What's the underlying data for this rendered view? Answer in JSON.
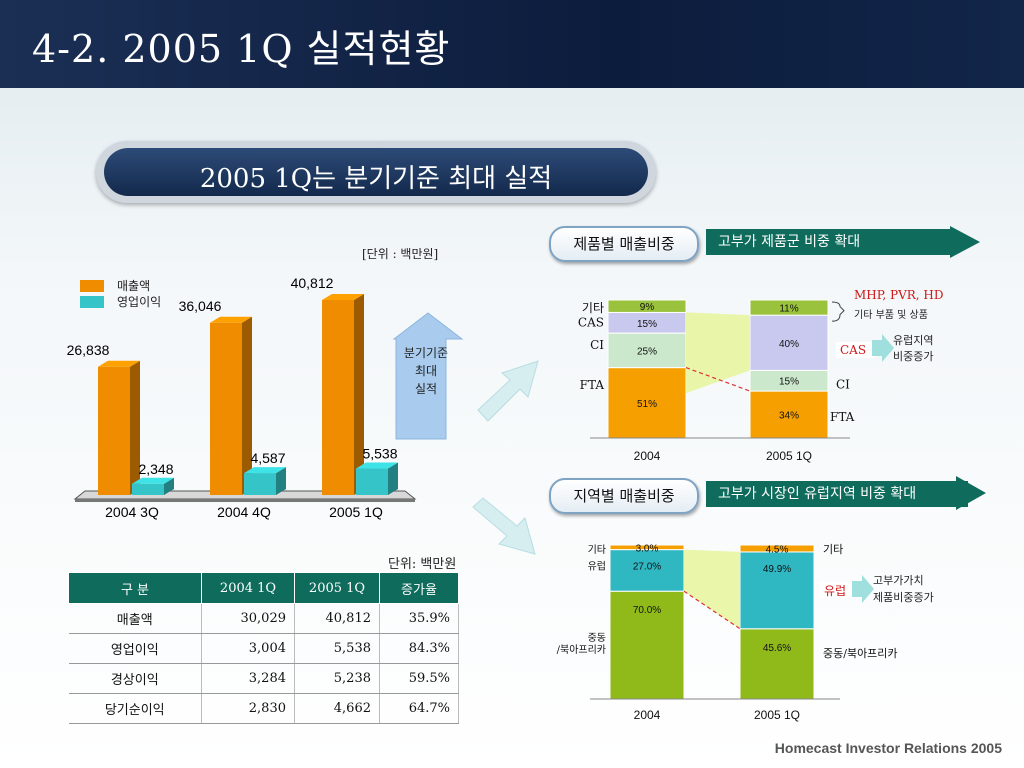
{
  "title": "4-2. 2005 1Q 실적현황",
  "headline": "2005 1Q는 분기기준 최대 실적",
  "unit_top": "[단위 : 백만원]",
  "unit_table": "단위: 백만원",
  "up_arrow_text": [
    "분기기준",
    "최대",
    "실적"
  ],
  "footer": "Homecast Investor Relations 2005",
  "colors": {
    "sales": "#f08c00",
    "op": "#35c5c8",
    "banner": "#0f6c5c",
    "fta": "#f5a000",
    "ci": "#cce8cc",
    "cas": "#c9c9ef",
    "etc": "#9ac23c",
    "europe": "#2fb7c2",
    "mideast": "#8fba1a"
  },
  "sections": {
    "product": {
      "tag": "제품별 매출비중",
      "banner": "고부가 제품군 비중 확대"
    },
    "region": {
      "tag": "지역별 매출비중",
      "banner": "고부가 시장인 유럽지역 비중 확대"
    }
  },
  "chart_data": [
    {
      "type": "bar",
      "categories": [
        "2004 3Q",
        "2004 4Q",
        "2005 1Q"
      ],
      "series": [
        {
          "name": "매출액",
          "values": [
            26838,
            36046,
            40812
          ],
          "labels": [
            "26,838",
            "36,046",
            "40,812"
          ]
        },
        {
          "name": "영업이익",
          "values": [
            2348,
            4587,
            5538
          ],
          "labels": [
            "2,348",
            "4,587",
            "5,538"
          ]
        }
      ]
    },
    {
      "type": "bar",
      "stacked": true,
      "categories": [
        "2004",
        "2005 1Q"
      ],
      "series": [
        {
          "name": "FTA",
          "values": [
            51,
            34
          ],
          "labels": [
            "51%",
            "34%"
          ]
        },
        {
          "name": "CI",
          "values": [
            25,
            15
          ],
          "labels": [
            "25%",
            "15%"
          ]
        },
        {
          "name": "CAS",
          "values": [
            15,
            40
          ],
          "labels": [
            "15%",
            "40%"
          ]
        },
        {
          "name": "기타",
          "values": [
            9,
            11
          ],
          "labels": [
            "9%",
            "11%"
          ]
        }
      ],
      "annotations": [
        "MHP, PVR, HD",
        "기타 부품 및 상품",
        "유럽지역",
        "비중증가",
        "CAS"
      ]
    },
    {
      "type": "bar",
      "stacked": true,
      "categories": [
        "2004",
        "2005 1Q"
      ],
      "series": [
        {
          "name": "중동/북아프리카",
          "values": [
            70.0,
            45.6
          ],
          "labels": [
            "70.0%",
            "45.6%"
          ]
        },
        {
          "name": "유럽",
          "values": [
            27.0,
            49.9
          ],
          "labels": [
            "27.0%",
            "49.9%"
          ]
        },
        {
          "name": "기타",
          "values": [
            3.0,
            4.5
          ],
          "labels": [
            "3.0%",
            "4.5%"
          ]
        }
      ],
      "left_labels": [
        "기타",
        "유럽",
        "중동",
        "/북아프리카"
      ],
      "annotations": [
        "고부가가치",
        "제품비중증가",
        "유럽"
      ]
    },
    {
      "type": "table",
      "columns": [
        "구    분",
        "2004 1Q",
        "2005 1Q",
        "증가율"
      ],
      "rows": [
        [
          "매출액",
          "30,029",
          "40,812",
          "35.9%"
        ],
        [
          "영업이익",
          "3,004",
          "5,538",
          "84.3%"
        ],
        [
          "경상이익",
          "3,284",
          "5,238",
          "59.5%"
        ],
        [
          "당기순이익",
          "2,830",
          "4,662",
          "64.7%"
        ]
      ]
    }
  ]
}
